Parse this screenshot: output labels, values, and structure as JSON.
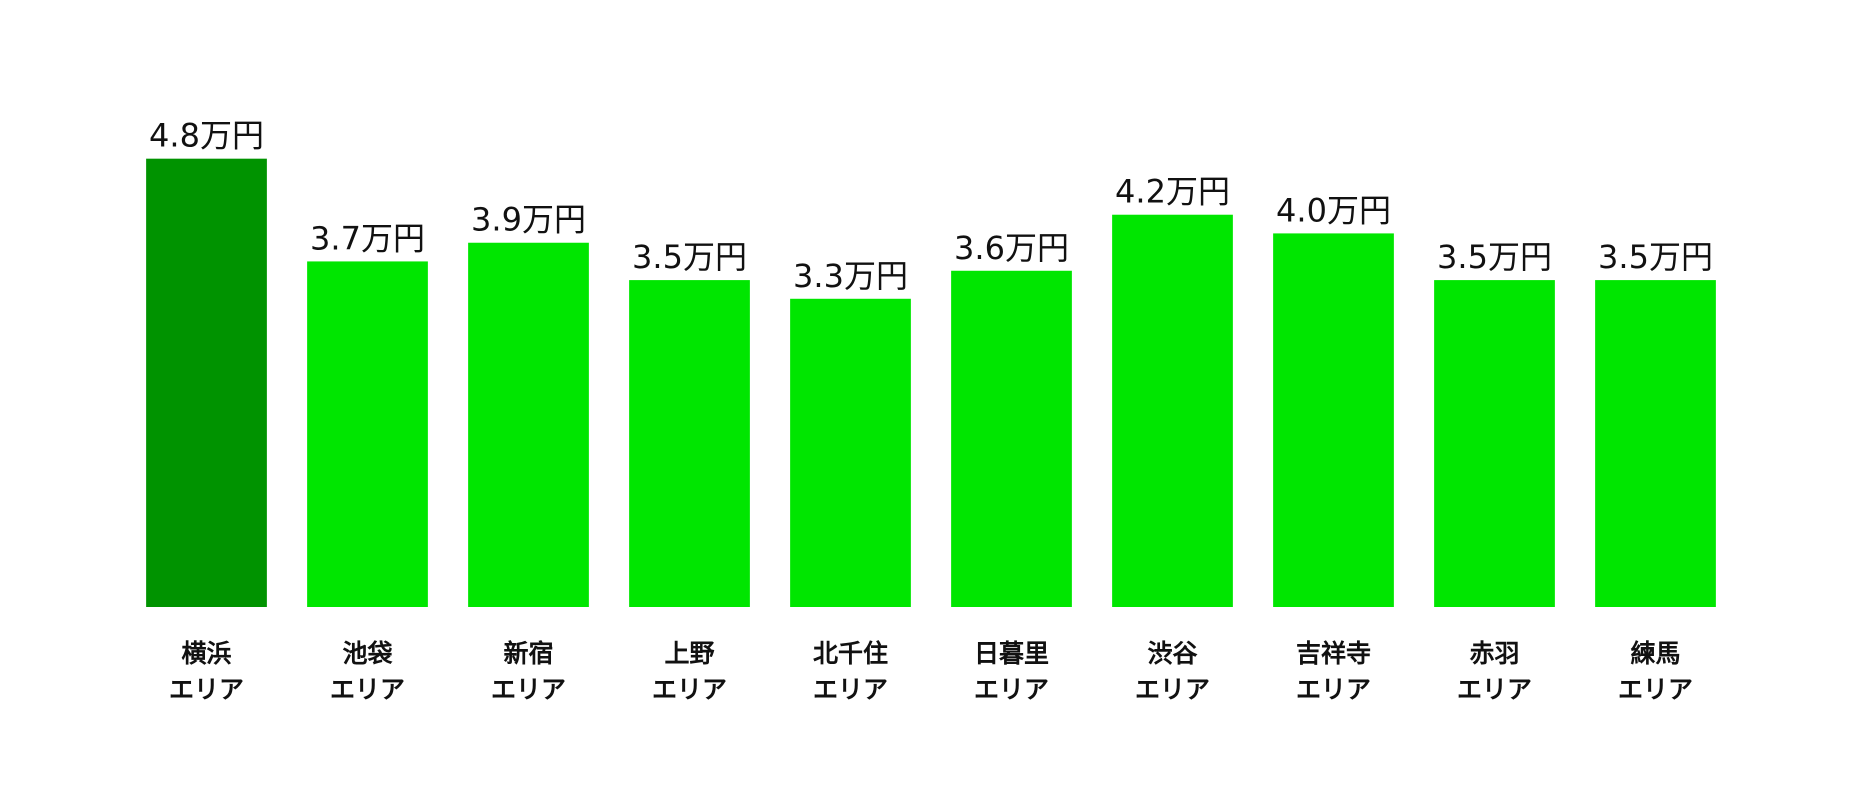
{
  "chart_data": {
    "type": "bar",
    "categories": [
      "横浜\nエリア",
      "池袋\nエリア",
      "新宿\nエリア",
      "上野\nエリア",
      "北千住\nエリア",
      "日暮里\nエリア",
      "渋谷\nエリア",
      "吉祥寺\nエリア",
      "赤羽\nエリア",
      "練馬\nエリア"
    ],
    "values": [
      4.8,
      3.7,
      3.9,
      3.5,
      3.3,
      3.6,
      4.2,
      4.0,
      3.5,
      3.5
    ],
    "value_labels": [
      "4.8万円",
      "3.7万円",
      "3.9万円",
      "3.5万円",
      "3.3万円",
      "3.6万円",
      "4.2万円",
      "4.0万円",
      "3.5万円",
      "3.5万円"
    ],
    "colors": [
      "#009300",
      "#00e600",
      "#00e600",
      "#00e600",
      "#00e600",
      "#00e600",
      "#00e600",
      "#00e600",
      "#00e600",
      "#00e600"
    ],
    "ylim": [
      0,
      5
    ]
  }
}
